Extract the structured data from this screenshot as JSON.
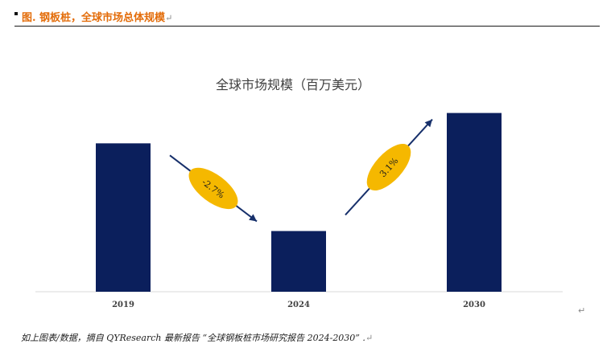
{
  "header": {
    "figure_title": "图.  钢板桩，全球市场总体规模",
    "return_mark": "↵"
  },
  "chart_data": {
    "type": "bar",
    "title": "全球市场规模（百万美元）",
    "categories": [
      "2019",
      "2024",
      "2030"
    ],
    "values": [
      1000,
      870,
      1045
    ],
    "ylim": [
      780,
      1060
    ],
    "grid": false,
    "bar_color": "#0b1f5c",
    "annotations": [
      {
        "label": "-2.7%",
        "from": "2019",
        "to": "2024",
        "direction": "down"
      },
      {
        "label": "3.1%",
        "from": "2024",
        "to": "2030",
        "direction": "up"
      }
    ],
    "annotation_color": "#f5b800"
  },
  "footer": {
    "caption": "如上图表/数据，摘自 QYResearch 最新报告 “全球钢板桩市场研究报告 2024-2030” .",
    "return_mark": "↵"
  }
}
